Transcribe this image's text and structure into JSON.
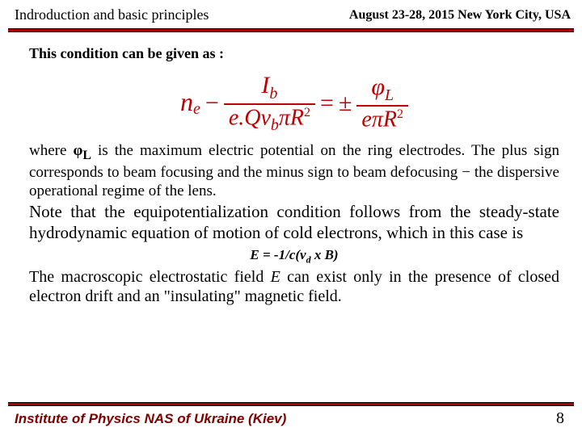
{
  "header": {
    "section_title": "Indroduction  and  basic principles",
    "conference": "August 23-28, 2015 New York City, USA"
  },
  "content": {
    "lead": "This condition can be given as :",
    "equation": {
      "lhs_sym": "n",
      "lhs_sub": "e",
      "minus": "−",
      "frac1_num_sym": "I",
      "frac1_num_sub": "b",
      "frac1_den": "e.Qv",
      "frac1_den_sub": "b",
      "frac1_den_tail": "πR",
      "eq": "=",
      "pm": "±",
      "frac2_num_sym": "φ",
      "frac2_num_sub": "L",
      "frac2_den": "eπR",
      "sup2": "2"
    },
    "para1_a": "where ",
    "para1_phi": "φ",
    "para1_phi_sub": "L",
    "para1_b": " is the maximum electric potential on the ring electrodes. The plus sign corresponds to beam focusing and the minus sign to beam defocusing − the dispersive operational regime of the lens.",
    "para2": "Note that the equipotentialization condition follows from the steady-state hydrodynamic equation of motion of cold electrons, which in this case is",
    "eq_small_a": "E  =  -1/",
    "eq_small_c": "c",
    "eq_small_b": "(v",
    "eq_small_sub": "d",
    "eq_small_tail": " x B)",
    "para3_a": "The macroscopic electrostatic field ",
    "para3_E": "E",
    "para3_b": " can exist only in the presence of closed electron drift and an \"insulating\" magnetic field."
  },
  "footer": {
    "institute": "Institute of Physics NAS of Ukraine (Kiev)",
    "page": "8"
  },
  "colors": {
    "rule": "#aa0000",
    "eq": "#c00000",
    "institute": "#800000"
  }
}
